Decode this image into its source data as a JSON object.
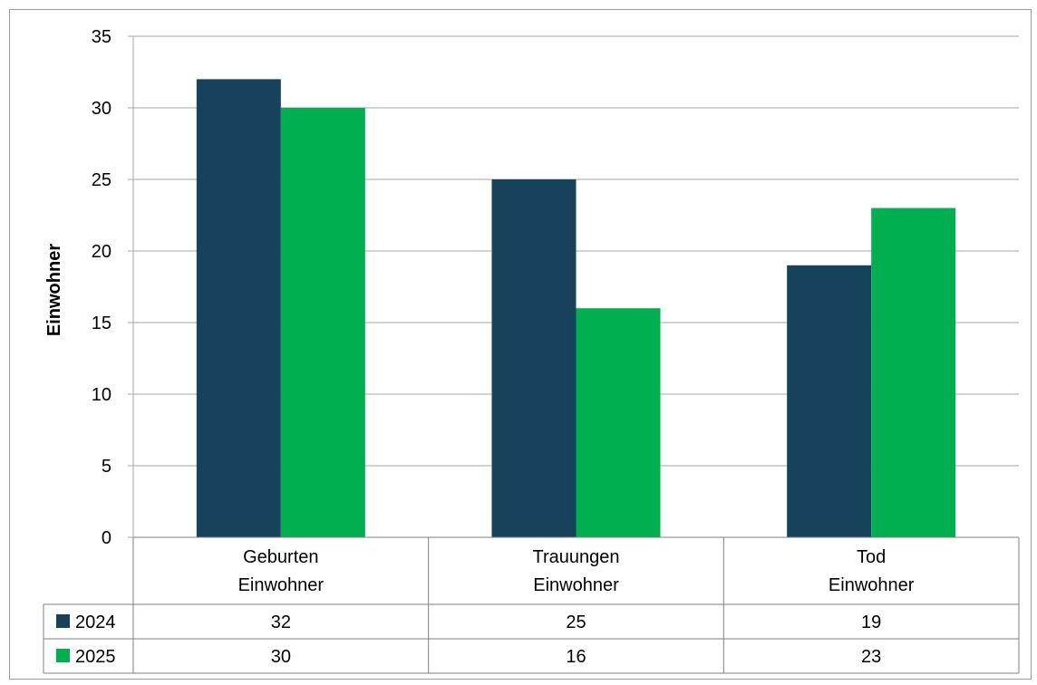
{
  "chart_data": {
    "type": "bar",
    "ylabel": "Einwohner",
    "ylim": [
      0,
      35
    ],
    "yticks": [
      0,
      5,
      10,
      15,
      20,
      25,
      30,
      35
    ],
    "grid": true,
    "categories": [
      [
        "Geburten",
        "Einwohner"
      ],
      [
        "Trauungen",
        "Einwohner"
      ],
      [
        "Tod",
        "Einwohner"
      ]
    ],
    "series": [
      {
        "name": "2024",
        "color": "#16425b",
        "values": [
          32,
          25,
          19
        ]
      },
      {
        "name": "2025",
        "color": "#00b050",
        "values": [
          30,
          16,
          23
        ]
      }
    ],
    "legend": "data-table-left"
  }
}
